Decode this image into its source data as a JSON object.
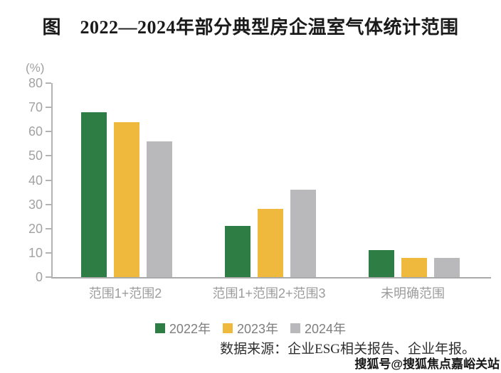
{
  "chart_data": {
    "type": "bar",
    "title": "图　2022—2024年部分典型房企温室气体统计范围",
    "ylabel": "(%)",
    "categories": [
      "范围1+范围2",
      "范围1+范围2+范围3",
      "未明确范围"
    ],
    "series": [
      {
        "name": "2022年",
        "color": "#2E7D45",
        "values": [
          68,
          21,
          11
        ]
      },
      {
        "name": "2023年",
        "color": "#EEB93C",
        "values": [
          64,
          28,
          8
        ]
      },
      {
        "name": "2024年",
        "color": "#B9B9BB",
        "values": [
          56,
          36,
          8
        ]
      }
    ],
    "ylim": [
      0,
      80
    ],
    "yticks": [
      0,
      10,
      20,
      30,
      40,
      50,
      60,
      70,
      80
    ],
    "grid": false,
    "legend_position": "bottom"
  },
  "source_note": "数据来源：企业ESG相关报告、企业年报。",
  "watermark": "搜狐号@搜狐焦点嘉峪关站"
}
